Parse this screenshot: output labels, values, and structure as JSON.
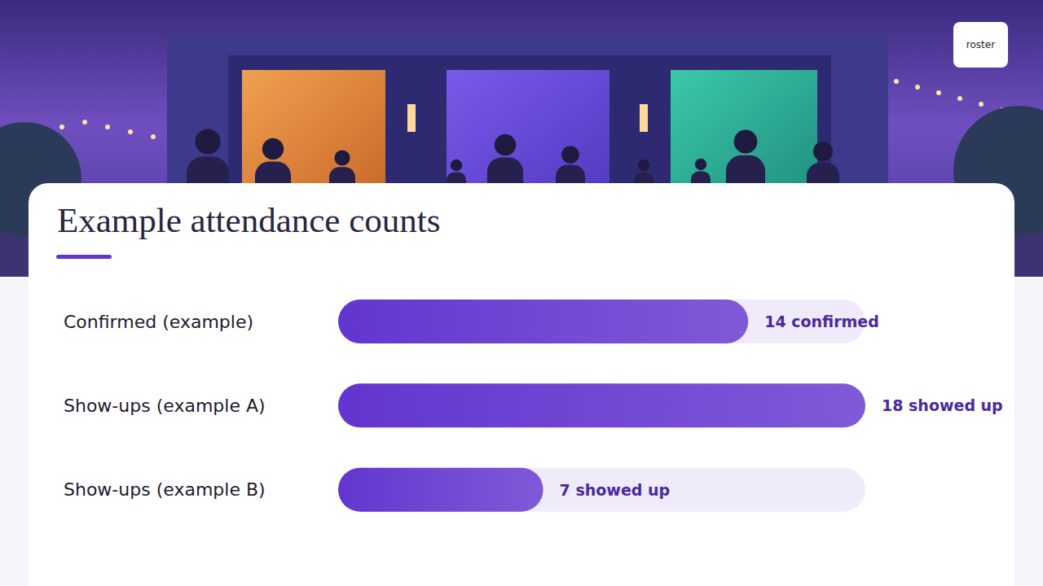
{
  "header": {
    "brand": "roster"
  },
  "chart_data": {
    "type": "bar",
    "orientation": "horizontal",
    "title": "Example attendance counts",
    "categories": [
      "Confirmed (example)",
      "Show-ups (example A)",
      "Show-ups (example B)"
    ],
    "values": [
      14,
      18,
      7
    ],
    "value_labels": [
      "14 confirmed",
      "18 showed up",
      "7 showed up"
    ],
    "data_labels": true,
    "xlim": [
      0,
      18
    ],
    "tick_labels": "y",
    "grid": false,
    "color": "#6236cf"
  }
}
